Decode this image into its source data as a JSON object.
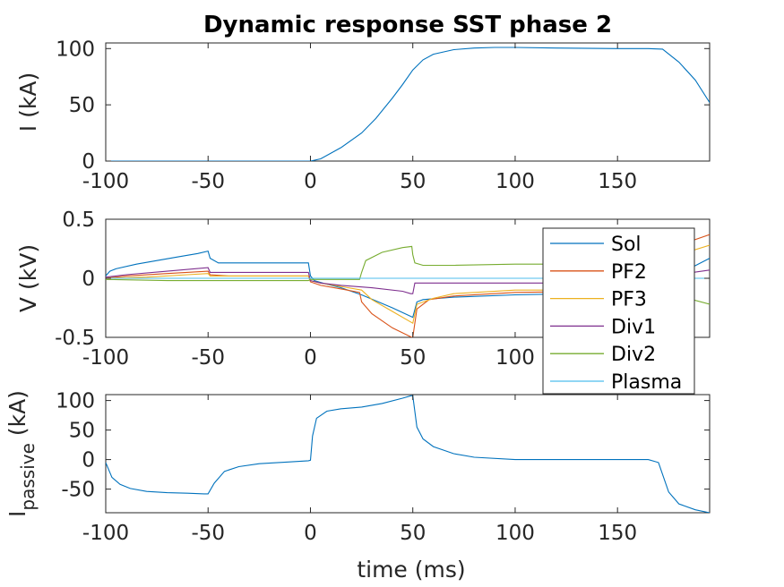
{
  "title": "Dynamic response SST phase 2",
  "chart_data": [
    {
      "type": "line",
      "ylabel": "I (kA)",
      "xlim": [
        -100,
        195
      ],
      "ylim": [
        0,
        105
      ],
      "xticks": [
        -100,
        -50,
        0,
        50,
        100,
        150
      ],
      "yticks": [
        0,
        50,
        100
      ],
      "grid": false,
      "series": [
        {
          "color": "#0072BD",
          "x": [
            -100,
            0,
            5,
            15,
            25,
            32,
            40,
            45,
            50,
            55,
            60,
            70,
            80,
            90,
            100,
            120,
            150,
            165,
            172,
            180,
            188,
            195
          ],
          "y": [
            0,
            0,
            2,
            12,
            25,
            38,
            56,
            68,
            81,
            90,
            95,
            99,
            100.5,
            101,
            101,
            100.5,
            100,
            100,
            99.5,
            88,
            72,
            52
          ]
        }
      ]
    },
    {
      "type": "line",
      "ylabel": "V (kV)",
      "xlim": [
        -100,
        195
      ],
      "ylim": [
        -0.5,
        0.5
      ],
      "xticks": [
        -100,
        -50,
        0,
        50,
        100,
        150
      ],
      "yticks": [
        -0.5,
        0,
        0.5
      ],
      "grid": false,
      "legend": {
        "position": "top-right"
      },
      "series": [
        {
          "name": "Sol",
          "color": "#0072BD",
          "x": [
            -100,
            -98,
            -95,
            -85,
            -75,
            -65,
            -55,
            -50,
            -49,
            -45,
            -30,
            -15,
            -1,
            0,
            2,
            8,
            15,
            25,
            40,
            50,
            52,
            55,
            70,
            100,
            130,
            160,
            185,
            195
          ],
          "y": [
            0.02,
            0.06,
            0.08,
            0.12,
            0.15,
            0.18,
            0.21,
            0.23,
            0.17,
            0.13,
            0.13,
            0.13,
            0.13,
            0.02,
            -0.02,
            -0.05,
            -0.08,
            -0.14,
            -0.25,
            -0.33,
            -0.2,
            -0.18,
            -0.16,
            -0.14,
            -0.13,
            -0.12,
            0.08,
            0.17
          ]
        },
        {
          "name": "PF2",
          "color": "#D95319",
          "x": [
            -100,
            -90,
            -70,
            -50,
            -49,
            -40,
            -20,
            -1,
            0,
            5,
            15,
            24,
            25,
            30,
            40,
            49.5,
            50,
            52,
            58,
            70,
            100,
            140,
            180,
            195
          ],
          "y": [
            0,
            0.02,
            0.04,
            0.06,
            0.03,
            0.02,
            0.02,
            0.02,
            -0.03,
            -0.06,
            -0.09,
            -0.12,
            -0.2,
            -0.3,
            -0.42,
            -0.5,
            -0.5,
            -0.26,
            -0.18,
            -0.15,
            -0.12,
            -0.11,
            0.28,
            0.37
          ]
        },
        {
          "name": "PF3",
          "color": "#EDB120",
          "x": [
            -100,
            -80,
            -60,
            -50,
            -49,
            -30,
            -1,
            0,
            5,
            15,
            25,
            30,
            40,
            50,
            52,
            60,
            70,
            100,
            140,
            180,
            195
          ],
          "y": [
            0,
            0.01,
            0.03,
            0.04,
            0.02,
            0.02,
            0.02,
            -0.02,
            -0.04,
            -0.07,
            -0.1,
            -0.18,
            -0.28,
            -0.38,
            -0.22,
            -0.17,
            -0.13,
            -0.1,
            -0.1,
            0.2,
            0.28
          ]
        },
        {
          "name": "Div1",
          "color": "#7E2F8E",
          "x": [
            -100,
            -90,
            -70,
            -50,
            -49,
            -30,
            -1,
            0,
            5,
            15,
            30,
            45,
            49,
            50,
            51,
            70,
            100,
            150,
            195
          ],
          "y": [
            0.01,
            0.03,
            0.06,
            0.09,
            0.05,
            0.05,
            0.05,
            -0.02,
            -0.04,
            -0.06,
            -0.08,
            -0.11,
            -0.13,
            -0.13,
            -0.04,
            -0.04,
            -0.04,
            -0.04,
            0.07
          ]
        },
        {
          "name": "Div2",
          "color": "#77AC30",
          "x": [
            -100,
            -70,
            -50,
            -30,
            -1,
            0,
            24,
            25,
            27,
            35,
            45,
            49.5,
            50,
            51,
            55,
            70,
            100,
            150,
            180,
            195
          ],
          "y": [
            -0.01,
            -0.02,
            -0.02,
            -0.02,
            -0.02,
            -0.01,
            -0.01,
            0.05,
            0.15,
            0.22,
            0.26,
            0.27,
            0.2,
            0.13,
            0.11,
            0.11,
            0.12,
            0.12,
            -0.15,
            -0.22
          ]
        },
        {
          "name": "Plasma",
          "color": "#4DBEEE",
          "x": [
            -100,
            0,
            50,
            100,
            150,
            195
          ],
          "y": [
            0,
            0,
            0,
            0,
            0,
            0
          ]
        }
      ]
    },
    {
      "type": "line",
      "ylabel_main": "I",
      "ylabel_sub": "passive",
      "ylabel_unit": " (kA)",
      "xlabel": "time (ms)",
      "xlim": [
        -100,
        195
      ],
      "ylim": [
        -90,
        110
      ],
      "xticks": [
        -100,
        -50,
        0,
        50,
        100,
        150
      ],
      "yticks": [
        -50,
        0,
        50,
        100
      ],
      "grid": false,
      "series": [
        {
          "color": "#0072BD",
          "x": [
            -100,
            -97,
            -93,
            -88,
            -80,
            -70,
            -60,
            -52,
            -50,
            -47,
            -42,
            -35,
            -25,
            -10,
            -1,
            0,
            1,
            3,
            8,
            15,
            25,
            35,
            45,
            49,
            50,
            52,
            55,
            60,
            70,
            80,
            100,
            130,
            165,
            170,
            175,
            180,
            188,
            195
          ],
          "y": [
            -5,
            -30,
            -42,
            -49,
            -54,
            -56,
            -57,
            -58,
            -58,
            -40,
            -20,
            -12,
            -7,
            -4,
            -2,
            -1,
            40,
            70,
            82,
            86,
            89,
            95,
            104,
            108,
            108,
            55,
            35,
            22,
            10,
            4,
            0,
            0,
            0,
            -5,
            -55,
            -75,
            -85,
            -90
          ]
        }
      ]
    }
  ]
}
